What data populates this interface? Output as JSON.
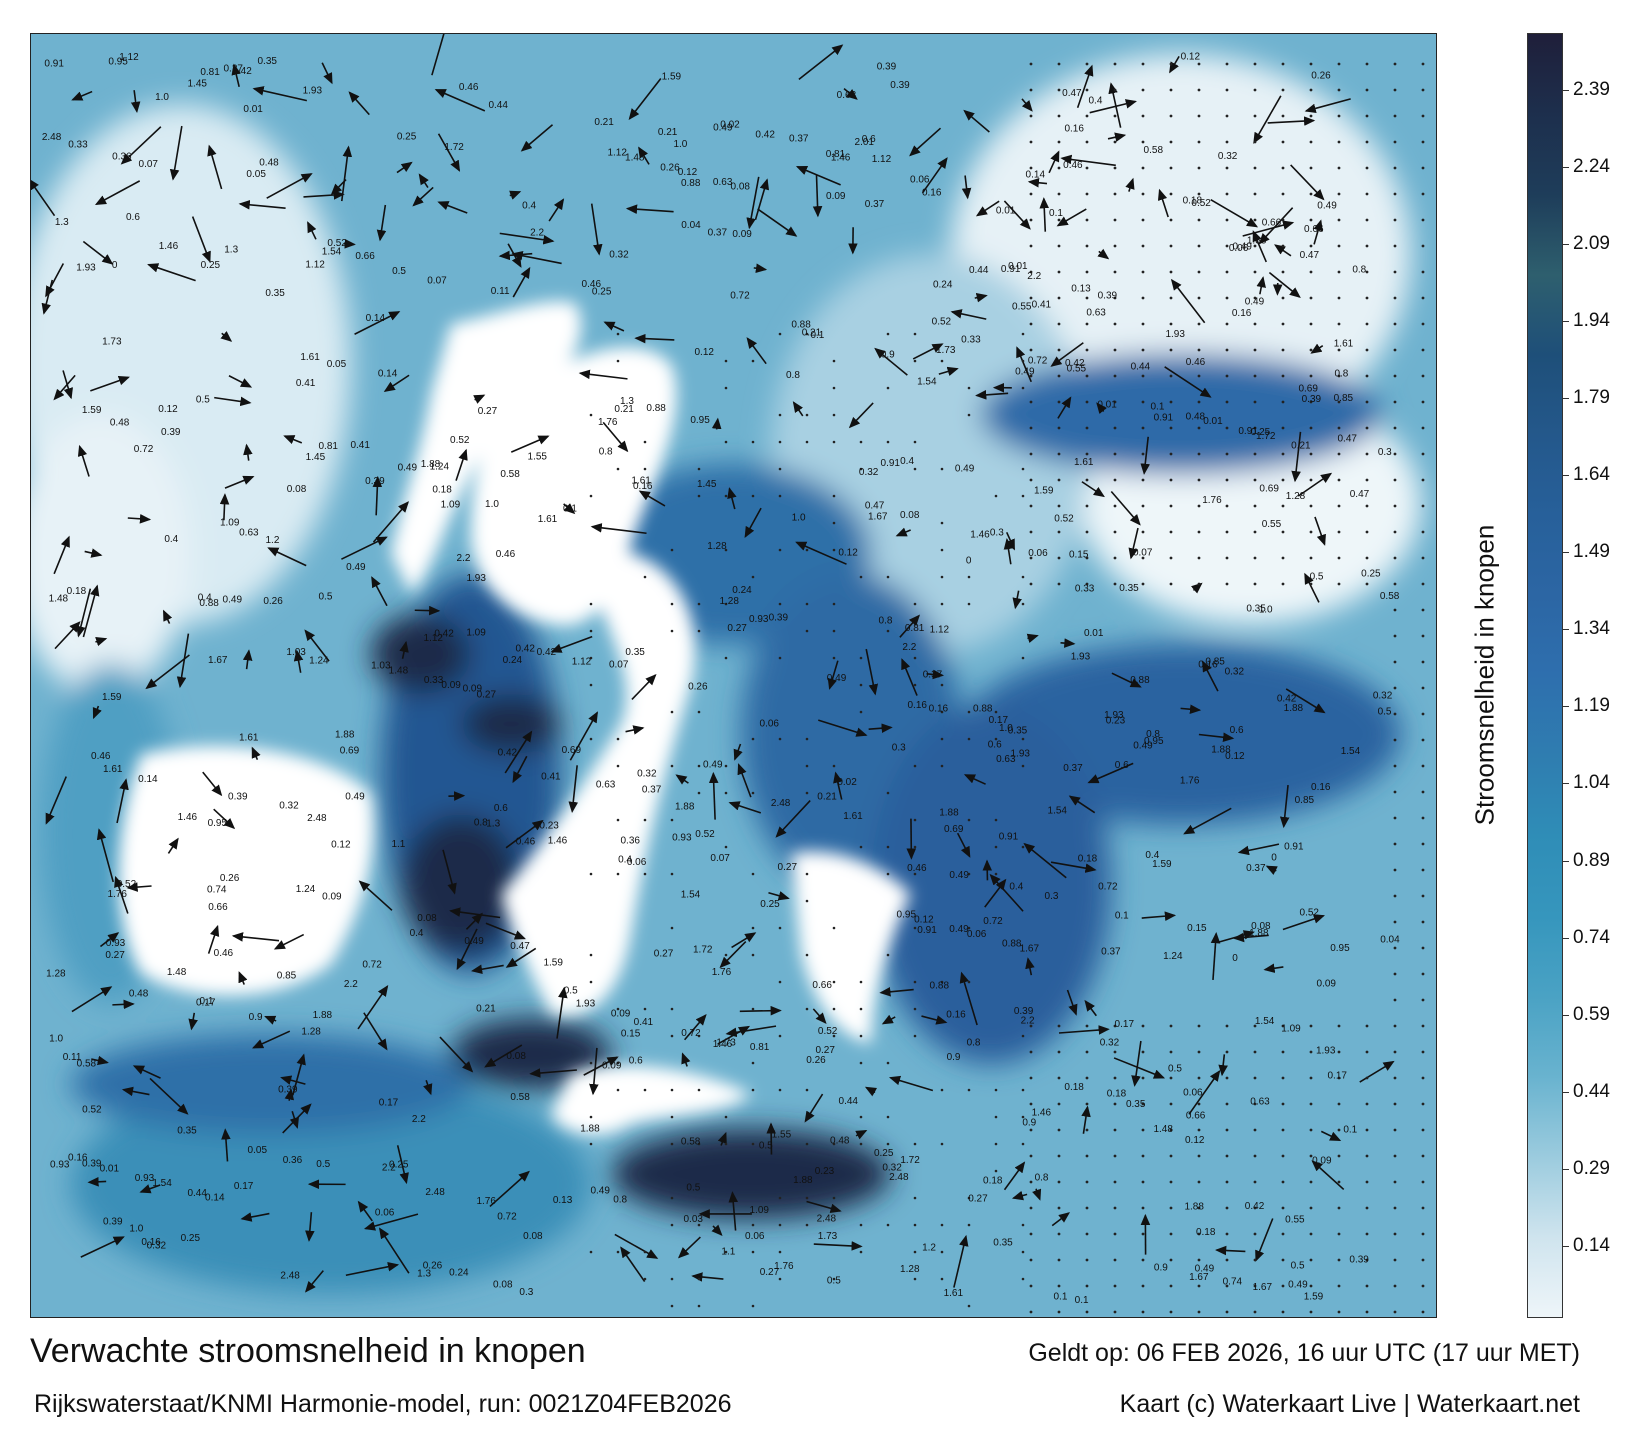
{
  "title": "Verwachte stroomsnelheid in knopen",
  "subtitle": "Rijkswaterstaat/KNMI Harmonie-model, run: 0021Z04FEB2026",
  "valid_time": "Geldt op: 06 FEB 2026, 16 uur UTC (17 uur MET)",
  "credit": "Kaart (c) Waterkaart Live | Waterkaart.net",
  "colorbar": {
    "label": "Stroomsnelheid in knopen",
    "ticks": [
      "2.39",
      "2.24",
      "2.09",
      "1.94",
      "1.79",
      "1.64",
      "1.49",
      "1.34",
      "1.19",
      "1.04",
      "0.89",
      "0.74",
      "0.59",
      "0.44",
      "0.29",
      "0.14"
    ],
    "colors": [
      "#1f1f3a",
      "#1d2f4d",
      "#1e3d5a",
      "#2e5f6e",
      "#1e4f79",
      "#24588b",
      "#27609a",
      "#2c66a4",
      "#2e6fae",
      "#2f7db0",
      "#2f8db7",
      "#3696bd",
      "#4aa2c4",
      "#69b3cf",
      "#9bcbde",
      "#cfe4ee",
      "#eef5f9"
    ],
    "min": 0.0,
    "max": 2.5
  },
  "map": {
    "water_colors": {
      "light": "#dbeaf2",
      "mid": "#5fa8c8",
      "strong": "#2f6fa8",
      "dark": "#1a2a4a"
    },
    "land_color": "#ffffff",
    "sample_labels": [
      "0.42",
      "0.41",
      "0.4",
      "0.39",
      "0.32",
      "0.27",
      "0.63",
      "0.49",
      "0.48",
      "0.39",
      "0.36",
      "0.42",
      "0.49",
      "0.46",
      "0.52",
      "0.5",
      "0.37",
      "0.47",
      "0.17",
      "0.18",
      "0.16",
      "0.23",
      "0.24",
      "0.15",
      "0.13",
      "0.14",
      "0.09",
      "0.12",
      "0.1",
      "0.16",
      "0.05",
      "0.04",
      "0.02",
      "0.03",
      "0.21",
      "0.44",
      "0.33",
      "0.26",
      "0.95",
      "0.77",
      "0.85",
      "1.09",
      "1.24",
      "1.46",
      "1.28",
      "1.61",
      "1.76",
      "1.93",
      "1.88",
      "1.59",
      "2.2",
      "2.48",
      "2.01",
      "1.73",
      "1.67",
      "1.72",
      "1.54",
      "1.48",
      "0.81",
      "0.74",
      "0.69",
      "0.66",
      "0.58",
      "0.55",
      "0.88",
      "0.91",
      "0.93",
      "1.03",
      "1.12",
      "0.3",
      "0.25",
      "0.35",
      "0.6",
      "0.72",
      "0.8",
      "0.9",
      "1.0",
      "1.1",
      "1.2",
      "1.3",
      "1.45",
      "1.55",
      "0.11",
      "0.07",
      "0.08",
      "0.06",
      "0.01",
      "0"
    ]
  }
}
